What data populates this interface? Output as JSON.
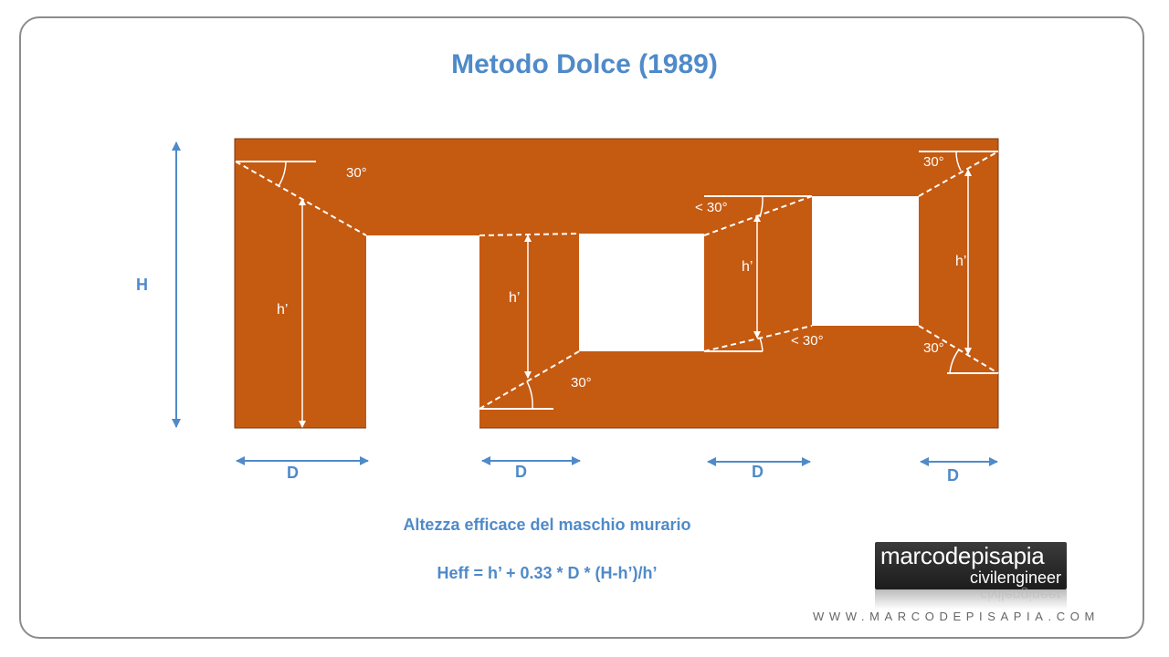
{
  "title": "Metodo Dolce (1989)",
  "labels": {
    "H": "H",
    "h_prime": "h’",
    "D": "D",
    "angle_30": "30°",
    "angle_lt30": "< 30°"
  },
  "subtitle": "Altezza efficace del maschio murario",
  "formula": "Heff = h’ + 0.33 * D * (H-h’)/h’",
  "logo": {
    "name_part1": "marco",
    "name_part2": "depisapia",
    "tagline": "civilengineer"
  },
  "website": "WWW.MARCODEPISAPIA.COM",
  "colors": {
    "wall": "#c55a11",
    "accent": "#4f8ac9",
    "frame": "#8c8c8c"
  }
}
